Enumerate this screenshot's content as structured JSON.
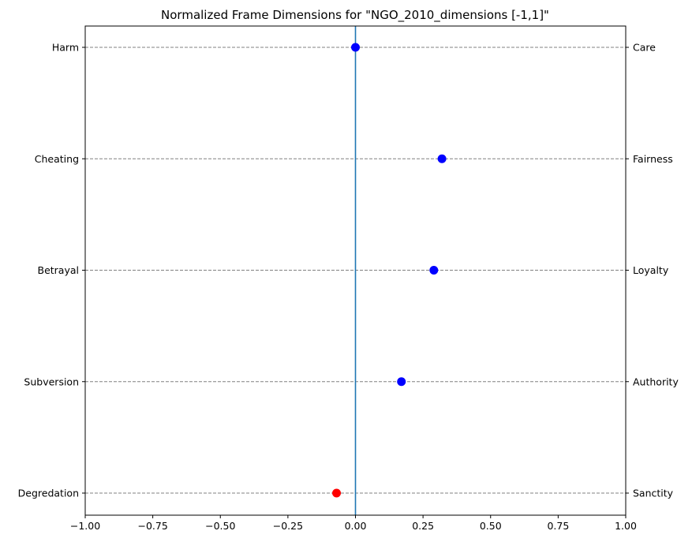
{
  "chart_data": {
    "type": "scatter",
    "title": "Normalized Frame Dimensions for \"NGO_2010_dimensions [-1,1]\"",
    "xlim": [
      -1,
      1
    ],
    "xticks": [
      -1.0,
      -0.75,
      -0.5,
      -0.25,
      0.0,
      0.25,
      0.5,
      0.75,
      1.0
    ],
    "xtick_labels": [
      "−1.00",
      "−0.75",
      "−0.50",
      "−0.25",
      "0.00",
      "0.25",
      "0.50",
      "0.75",
      "1.00"
    ],
    "grid": "horizontal dashed",
    "zero_line": true,
    "colors": {
      "positive": "#0000ff",
      "negative": "#ff0000",
      "zero_line": "#1f77b4",
      "grid": "#808080"
    },
    "points": [
      {
        "left_label": "Harm",
        "right_label": "Care",
        "value": 0.0
      },
      {
        "left_label": "Cheating",
        "right_label": "Fairness",
        "value": 0.32
      },
      {
        "left_label": "Betrayal",
        "right_label": "Loyalty",
        "value": 0.29
      },
      {
        "left_label": "Subversion",
        "right_label": "Authority",
        "value": 0.17
      },
      {
        "left_label": "Degredation",
        "right_label": "Sanctity",
        "value": -0.07
      }
    ]
  }
}
